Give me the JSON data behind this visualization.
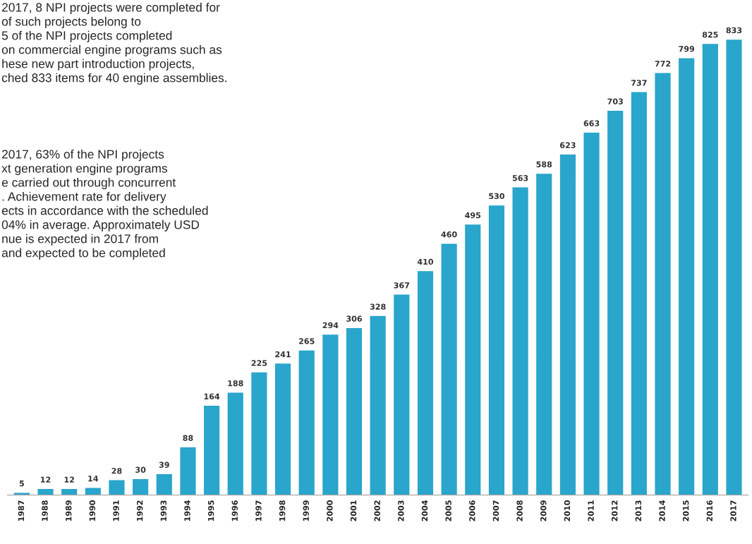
{
  "chart_data": {
    "type": "bar",
    "categories": [
      "1987",
      "1988",
      "1989",
      "1990",
      "1991",
      "1992",
      "1993",
      "1994",
      "1995",
      "1996",
      "1997",
      "1998",
      "1999",
      "2000",
      "2001",
      "2002",
      "2003",
      "2004",
      "2005",
      "2006",
      "2007",
      "2008",
      "2009",
      "2010",
      "2011",
      "2012",
      "2013",
      "2014",
      "2015",
      "2016",
      "2017"
    ],
    "values": [
      5,
      12,
      12,
      14,
      28,
      30,
      39,
      88,
      164,
      188,
      225,
      241,
      265,
      294,
      306,
      328,
      367,
      410,
      460,
      495,
      530,
      563,
      588,
      623,
      663,
      703,
      737,
      772,
      799,
      825,
      833
    ],
    "color": "#2aa5cb",
    "data_labels": true,
    "grid": false,
    "annotations": [
      "2017, 8 NPI projects were completed for\nof such projects belong to\n5 of the NPI projects completed\non commercial engine programs such as\nhese new part introduction projects,\nched 833 items for 40 engine assemblies.",
      "2017, 63% of the NPI projects\nxt generation engine programs\ne carried out through concurrent\n. Achievement rate for delivery\nects in accordance with the scheduled\n04% in average. Approximately USD\nnue is expected in 2017 from\nand expected to be completed"
    ]
  }
}
